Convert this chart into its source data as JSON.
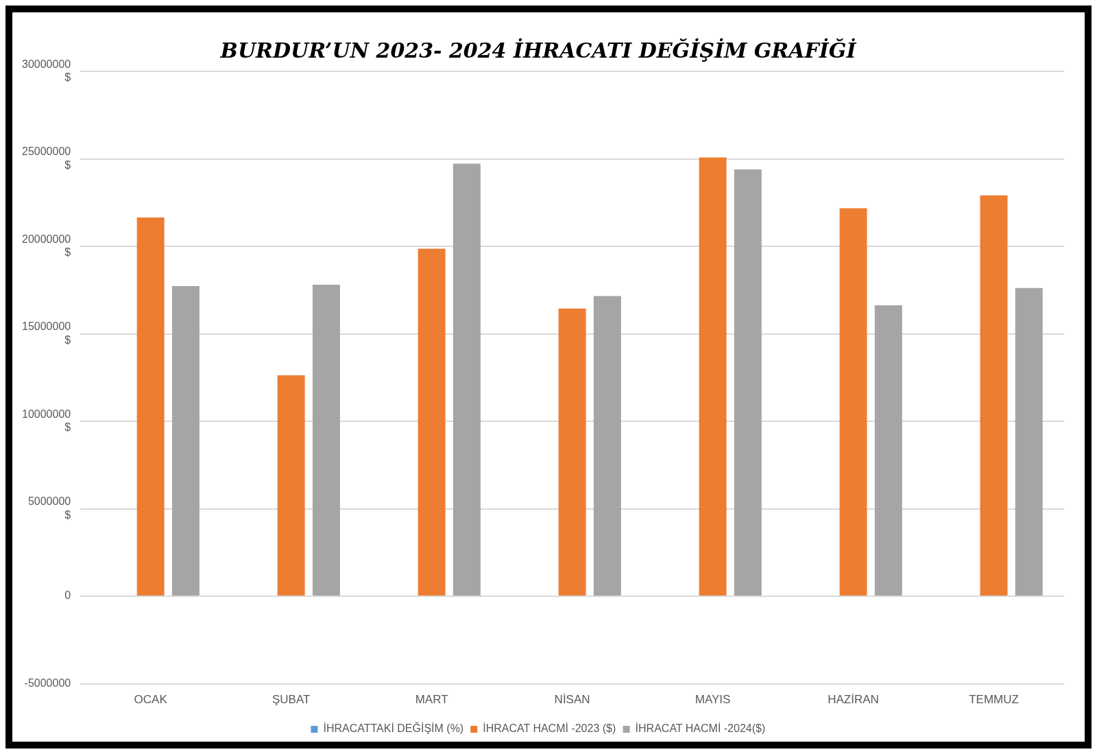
{
  "chart_data": {
    "type": "bar",
    "title": "BURDUR’UN 2023- 2024 İHRACATI DEĞİŞİM GRAFİĞİ",
    "categories": [
      "OCAK",
      "ŞUBAT",
      "MART",
      "NİSAN",
      "MAYIS",
      "HAZİRAN",
      "TEMMUZ"
    ],
    "series": [
      {
        "name": "İHRACATTAKİ DEĞİŞİM (%)",
        "color": "#5b9bd5",
        "values": [
          0,
          0,
          0,
          0,
          0,
          0,
          0
        ]
      },
      {
        "name": "İHRACAT HACMİ -2023 ($)",
        "color": "#ed7d31",
        "values": [
          21650000,
          12630000,
          19860000,
          16440000,
          25080000,
          22180000,
          22910000
        ]
      },
      {
        "name": "İHRACAT HACMİ -2024($)",
        "color": "#a5a5a5",
        "values": [
          17730000,
          17810000,
          24730000,
          17160000,
          24390000,
          16630000,
          17620000
        ]
      }
    ],
    "ylim": [
      -5000000,
      30000000
    ],
    "yticks": [
      -5000000,
      0,
      {
        "value": 5000000,
        "label": "5000000\n$"
      },
      {
        "value": 10000000,
        "label": "10000000\n$"
      },
      {
        "value": 15000000,
        "label": "15000000\n$"
      },
      {
        "value": 20000000,
        "label": "20000000\n$"
      },
      {
        "value": 25000000,
        "label": "25000000\n$"
      },
      {
        "value": 30000000,
        "label": "30000000\n$"
      }
    ],
    "grid": "y",
    "legend": "bottom"
  }
}
